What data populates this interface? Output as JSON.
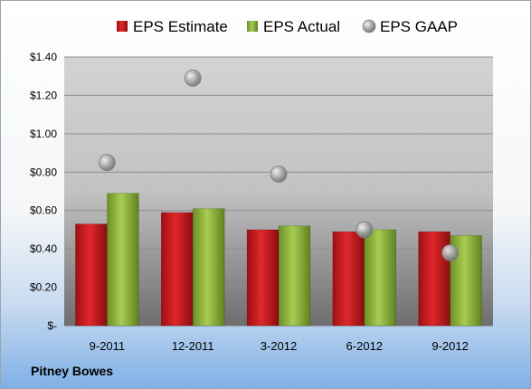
{
  "company": "Pitney Bowes",
  "chart_data": {
    "type": "bar",
    "categories": [
      "9-2011",
      "12-2011",
      "3-2012",
      "6-2012",
      "9-2012"
    ],
    "series": [
      {
        "name": "EPS Estimate",
        "kind": "bar",
        "color": "#c0181b",
        "values": [
          0.53,
          0.59,
          0.5,
          0.49,
          0.49
        ]
      },
      {
        "name": "EPS Actual",
        "kind": "bar",
        "color": "#8db23a",
        "values": [
          0.69,
          0.61,
          0.52,
          0.5,
          0.47
        ]
      },
      {
        "name": "EPS GAAP",
        "kind": "scatter",
        "color": "#a9a9a9",
        "values": [
          0.85,
          1.29,
          0.79,
          0.5,
          0.38
        ]
      }
    ],
    "ylim": [
      0,
      1.4
    ],
    "yticks": [
      0,
      0.2,
      0.4,
      0.6,
      0.8,
      1.0,
      1.2,
      1.4
    ],
    "ytick_labels": [
      "$-",
      "$0.20",
      "$0.40",
      "$0.60",
      "$0.80",
      "$1.00",
      "$1.20",
      "$1.40"
    ],
    "legend": "top",
    "grid": true
  }
}
